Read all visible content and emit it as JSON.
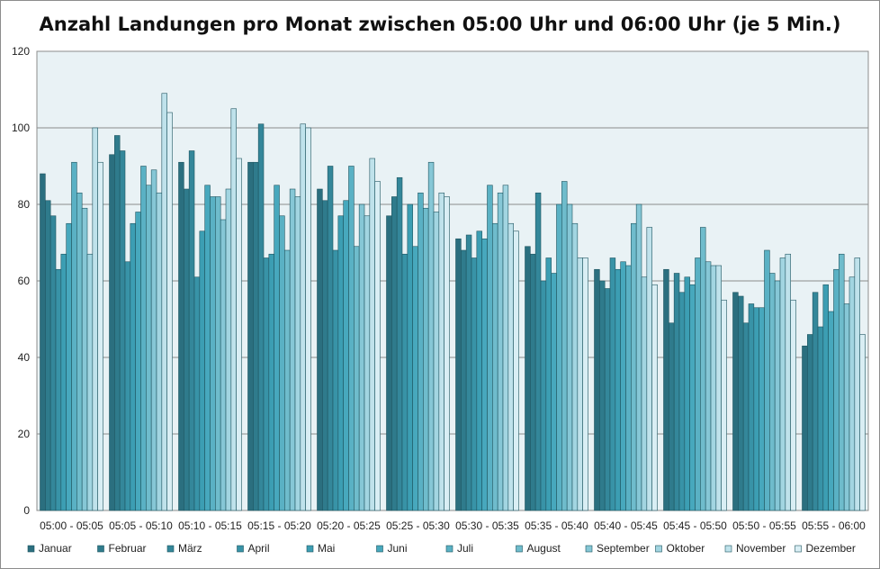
{
  "chart_data": {
    "type": "bar",
    "title": "Anzahl Landungen pro Monat zwischen 05:00 Uhr und 06:00 Uhr (je 5 Min.)",
    "xlabel": "",
    "ylabel": "",
    "ylim": [
      0,
      120
    ],
    "yticks": [
      "0",
      "20",
      "40",
      "60",
      "80",
      "100",
      "120"
    ],
    "grid": true,
    "legend_position": "bottom",
    "categories": [
      "05:00 - 05:05",
      "05:05 - 05:10",
      "05:10 - 05:15",
      "05:15 - 05:20",
      "05:20 - 05:25",
      "05:25 - 05:30",
      "05:30 - 05:35",
      "05:35 - 05:40",
      "05:40 - 05:45",
      "05:45 - 05:50",
      "05:50 - 05:55",
      "05:55 - 06:00"
    ],
    "series": [
      {
        "name": "Januar",
        "color": "#2b6f7f",
        "values": [
          88,
          93,
          91,
          91,
          84,
          77,
          71,
          69,
          63,
          63,
          57,
          43
        ]
      },
      {
        "name": "Februar",
        "color": "#2f7b8c",
        "values": [
          81,
          98,
          84,
          91,
          81,
          82,
          68,
          67,
          60,
          49,
          56,
          46
        ]
      },
      {
        "name": "März",
        "color": "#34879a",
        "values": [
          77,
          94,
          94,
          101,
          90,
          87,
          72,
          83,
          58,
          62,
          49,
          57
        ]
      },
      {
        "name": "April",
        "color": "#3893a7",
        "values": [
          63,
          65,
          61,
          66,
          68,
          67,
          66,
          60,
          66,
          57,
          54,
          48
        ]
      },
      {
        "name": "Mai",
        "color": "#3c9eb3",
        "values": [
          67,
          75,
          73,
          67,
          77,
          80,
          73,
          66,
          63,
          61,
          53,
          59
        ]
      },
      {
        "name": "Juni",
        "color": "#47a8bd",
        "values": [
          75,
          78,
          85,
          85,
          81,
          69,
          71,
          62,
          65,
          59,
          53,
          52
        ]
      },
      {
        "name": "Juli",
        "color": "#5ab1c4",
        "values": [
          91,
          90,
          82,
          77,
          90,
          83,
          85,
          80,
          64,
          66,
          68,
          63
        ]
      },
      {
        "name": "August",
        "color": "#6fbccc",
        "values": [
          83,
          85,
          82,
          68,
          69,
          79,
          75,
          86,
          75,
          74,
          62,
          67
        ]
      },
      {
        "name": "September",
        "color": "#86c7d6",
        "values": [
          79,
          89,
          76,
          84,
          80,
          91,
          83,
          80,
          80,
          65,
          60,
          54
        ]
      },
      {
        "name": "Oktober",
        "color": "#a2d5e1",
        "values": [
          67,
          83,
          84,
          82,
          77,
          78,
          85,
          75,
          61,
          64,
          66,
          61
        ]
      },
      {
        "name": "November",
        "color": "#bfe2eb",
        "values": [
          100,
          109,
          105,
          101,
          92,
          83,
          75,
          66,
          74,
          64,
          67,
          66
        ]
      },
      {
        "name": "Dezember",
        "color": "#d9eef4",
        "values": [
          91,
          104,
          92,
          100,
          86,
          82,
          73,
          66,
          59,
          55,
          55,
          46
        ]
      }
    ]
  }
}
